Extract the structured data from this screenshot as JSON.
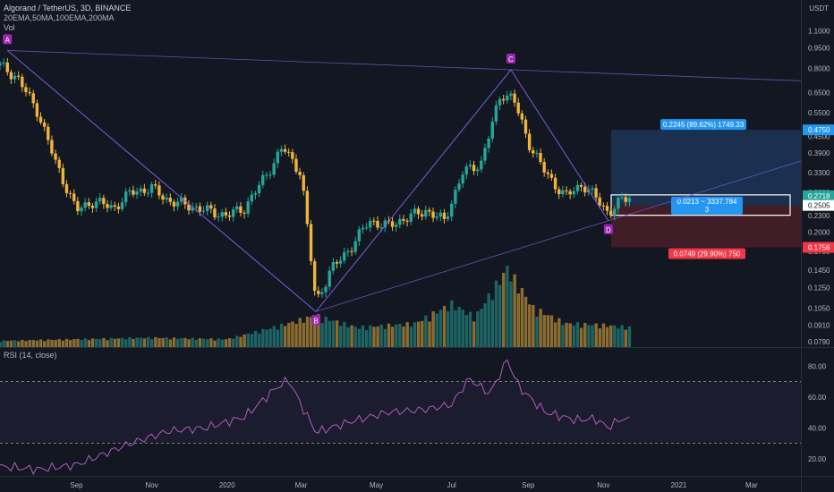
{
  "header": {
    "title": "Algorand / TetherUS, 3D, BINANCE",
    "indicators": "20EMA,50MA,100EMA,200MA",
    "volume": "Vol",
    "currency": "USDT"
  },
  "rsi": {
    "label": "RSI (14, close)"
  },
  "colors": {
    "background": "#131722",
    "up": "#26a69a",
    "down": "#f0b43c",
    "pattern": "#7b5cd6",
    "profit": "#1f3a5f",
    "loss": "#4a1f28",
    "rsi_line": "#b05cc0"
  },
  "chart_data": {
    "type": "candlestick",
    "price_axis": {
      "scale": "log",
      "ticks": [
        "1.1000",
        "0.9500",
        "0.8000",
        "0.6500",
        "0.5500",
        "0.4500",
        "0.3900",
        "0.3300",
        "0.2800",
        "0.2300",
        "0.2000",
        "0.1700",
        "0.1450",
        "0.1250",
        "0.1050",
        "0.0910",
        "0.0790"
      ]
    },
    "time_axis": {
      "ticks": [
        "Sep",
        "Nov",
        "2020",
        "Mar",
        "May",
        "Jul",
        "Sep",
        "Nov",
        "2021",
        "Mar"
      ]
    },
    "rsi_axis": {
      "ticks": [
        "80.00",
        "60.00",
        "40.00",
        "20.00"
      ],
      "band": [
        30,
        70
      ],
      "range": [
        10,
        90
      ]
    },
    "price_labels": [
      {
        "value": "0.4750",
        "kind": "profit"
      },
      {
        "value": "0.2718",
        "kind": "current"
      },
      {
        "value": "0.2505",
        "kind": "entry"
      },
      {
        "value": "0.1756",
        "kind": "stop"
      }
    ],
    "pattern_points": [
      {
        "label": "A",
        "date": "2019-07-07",
        "price": 0.93
      },
      {
        "label": "B",
        "date": "2020-03-13",
        "price": 0.102
      },
      {
        "label": "C",
        "date": "2020-08-18",
        "price": 0.79
      },
      {
        "label": "D",
        "date": "2020-11-05",
        "price": 0.22
      }
    ],
    "position": {
      "target_label": "0.2245 (89.62%) 1749.33",
      "center_label_line1": "0.0213 ~ 3337.784",
      "center_label_line2": "3",
      "stop_label": "0.0749 (29.90%) 750",
      "target": 0.475,
      "entry": 0.2505,
      "stop": 0.1756
    },
    "closes": [
      {
        "date": "2019-07-01",
        "close": 0.82
      },
      {
        "date": "2019-07-15",
        "close": 0.74
      },
      {
        "date": "2019-08-01",
        "close": 0.55
      },
      {
        "date": "2019-08-15",
        "close": 0.36
      },
      {
        "date": "2019-09-01",
        "close": 0.24
      },
      {
        "date": "2019-09-15",
        "close": 0.26
      },
      {
        "date": "2019-10-01",
        "close": 0.245
      },
      {
        "date": "2019-10-15",
        "close": 0.28
      },
      {
        "date": "2019-11-01",
        "close": 0.29
      },
      {
        "date": "2019-11-15",
        "close": 0.26
      },
      {
        "date": "2019-12-01",
        "close": 0.25
      },
      {
        "date": "2019-12-15",
        "close": 0.24
      },
      {
        "date": "2020-01-01",
        "close": 0.23
      },
      {
        "date": "2020-01-15",
        "close": 0.245
      },
      {
        "date": "2020-02-01",
        "close": 0.32
      },
      {
        "date": "2020-02-15",
        "close": 0.41
      },
      {
        "date": "2020-03-01",
        "close": 0.33
      },
      {
        "date": "2020-03-13",
        "close": 0.11
      },
      {
        "date": "2020-03-25",
        "close": 0.145
      },
      {
        "date": "2020-04-10",
        "close": 0.175
      },
      {
        "date": "2020-04-25",
        "close": 0.22
      },
      {
        "date": "2020-05-10",
        "close": 0.21
      },
      {
        "date": "2020-05-25",
        "close": 0.225
      },
      {
        "date": "2020-06-10",
        "close": 0.24
      },
      {
        "date": "2020-06-25",
        "close": 0.22
      },
      {
        "date": "2020-07-10",
        "close": 0.33
      },
      {
        "date": "2020-07-25",
        "close": 0.36
      },
      {
        "date": "2020-08-10",
        "close": 0.65
      },
      {
        "date": "2020-08-20",
        "close": 0.62
      },
      {
        "date": "2020-09-01",
        "close": 0.43
      },
      {
        "date": "2020-09-15",
        "close": 0.33
      },
      {
        "date": "2020-10-01",
        "close": 0.27
      },
      {
        "date": "2020-10-15",
        "close": 0.3
      },
      {
        "date": "2020-10-25",
        "close": 0.27
      },
      {
        "date": "2020-11-05",
        "close": 0.235
      },
      {
        "date": "2020-11-15",
        "close": 0.26
      },
      {
        "date": "2020-11-22",
        "close": 0.27
      }
    ],
    "rsi_values": [
      {
        "date": "2019-07-01",
        "rsi": 15
      },
      {
        "date": "2019-08-01",
        "rsi": 13
      },
      {
        "date": "2019-09-01",
        "rsi": 16
      },
      {
        "date": "2019-10-15",
        "rsi": 30
      },
      {
        "date": "2019-11-15",
        "rsi": 38
      },
      {
        "date": "2019-12-15",
        "rsi": 40
      },
      {
        "date": "2020-01-15",
        "rsi": 47
      },
      {
        "date": "2020-02-10",
        "rsi": 66
      },
      {
        "date": "2020-02-20",
        "rsi": 71
      },
      {
        "date": "2020-03-01",
        "rsi": 55
      },
      {
        "date": "2020-03-13",
        "rsi": 37
      },
      {
        "date": "2020-04-10",
        "rsi": 44
      },
      {
        "date": "2020-05-10",
        "rsi": 50
      },
      {
        "date": "2020-06-10",
        "rsi": 52
      },
      {
        "date": "2020-07-01",
        "rsi": 55
      },
      {
        "date": "2020-07-15",
        "rsi": 72
      },
      {
        "date": "2020-08-01",
        "rsi": 62
      },
      {
        "date": "2020-08-15",
        "rsi": 84
      },
      {
        "date": "2020-08-25",
        "rsi": 66
      },
      {
        "date": "2020-09-15",
        "rsi": 50
      },
      {
        "date": "2020-10-10",
        "rsi": 45
      },
      {
        "date": "2020-10-25",
        "rsi": 46
      },
      {
        "date": "2020-11-05",
        "rsi": 40
      },
      {
        "date": "2020-11-15",
        "rsi": 46
      },
      {
        "date": "2020-11-22",
        "rsi": 45
      }
    ],
    "volume": [
      {
        "date": "2019-07-01",
        "level": 0.08
      },
      {
        "date": "2019-09-01",
        "level": 0.1
      },
      {
        "date": "2019-11-01",
        "level": 0.12
      },
      {
        "date": "2020-01-01",
        "level": 0.1
      },
      {
        "date": "2020-02-15",
        "level": 0.28
      },
      {
        "date": "2020-03-13",
        "level": 0.4
      },
      {
        "date": "2020-04-15",
        "level": 0.25
      },
      {
        "date": "2020-06-01",
        "level": 0.3
      },
      {
        "date": "2020-07-01",
        "level": 0.55
      },
      {
        "date": "2020-07-20",
        "level": 0.38
      },
      {
        "date": "2020-08-15",
        "level": 1.0
      },
      {
        "date": "2020-09-05",
        "level": 0.5
      },
      {
        "date": "2020-10-01",
        "level": 0.3
      },
      {
        "date": "2020-11-01",
        "level": 0.28
      },
      {
        "date": "2020-11-22",
        "level": 0.25
      }
    ]
  }
}
